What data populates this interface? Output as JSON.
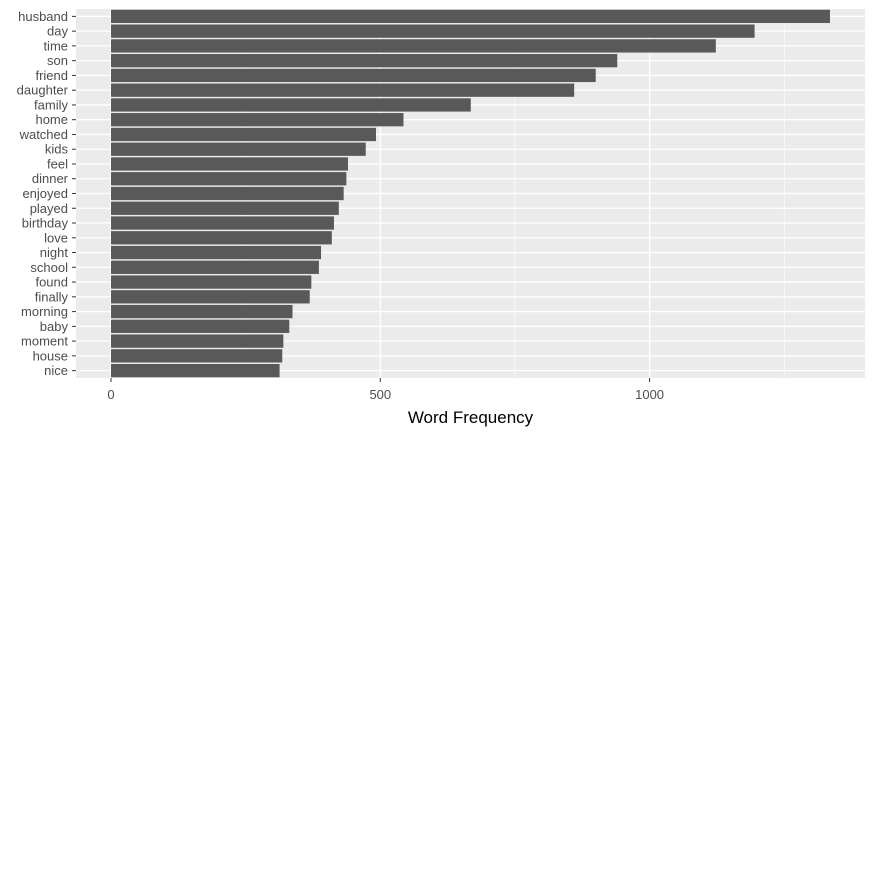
{
  "chart_data": {
    "type": "bar",
    "orientation": "horizontal",
    "title": "",
    "xlabel": "Word Frequency",
    "ylabel": "",
    "categories": [
      "husband",
      "day",
      "time",
      "son",
      "friend",
      "daughter",
      "family",
      "home",
      "watched",
      "kids",
      "feel",
      "dinner",
      "enjoyed",
      "played",
      "birthday",
      "love",
      "night",
      "school",
      "found",
      "finally",
      "morning",
      "baby",
      "moment",
      "house",
      "nice"
    ],
    "values": [
      1335,
      1195,
      1123,
      940,
      900,
      860,
      668,
      543,
      492,
      473,
      440,
      437,
      432,
      423,
      414,
      410,
      390,
      386,
      372,
      369,
      337,
      331,
      320,
      318,
      313
    ],
    "xlim": [
      -65,
      1400
    ],
    "xticks": [
      0,
      500,
      1000
    ],
    "xtick_labels": [
      "0",
      "500",
      "1000"
    ],
    "grid": true,
    "colors": {
      "bar": "#595959",
      "panel": "#ebebeb",
      "grid": "#ffffff",
      "text": "#4d4d4d",
      "tick": "#333333"
    }
  }
}
